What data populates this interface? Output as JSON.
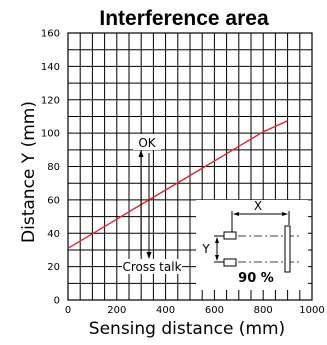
{
  "chart_data": {
    "type": "line",
    "title": "Interference area",
    "xlabel": "Sensing distance (mm)",
    "ylabel": "Distance Y (mm)",
    "xlim": [
      0,
      1000
    ],
    "ylim": [
      0,
      160
    ],
    "xticks": [
      "0",
      "200",
      "400",
      "600",
      "800",
      "1000"
    ],
    "yticks": [
      "0",
      "20",
      "40",
      "60",
      "80",
      "100",
      "120",
      "140",
      "160"
    ],
    "grid": true,
    "series": [
      {
        "x": [
          0,
          100,
          200,
          300,
          400,
          500,
          600,
          700,
          800,
          900
        ],
        "y": [
          31,
          39.7,
          48.4,
          57.2,
          65.9,
          74.6,
          83.3,
          92.1,
          100.8,
          107.4
        ],
        "color": "#e8262a"
      }
    ],
    "annotations": {
      "ok": "OK",
      "cross_talk": "Cross talk",
      "inset_x": "X",
      "inset_y": "Y",
      "inset_percent": "90 %"
    }
  }
}
